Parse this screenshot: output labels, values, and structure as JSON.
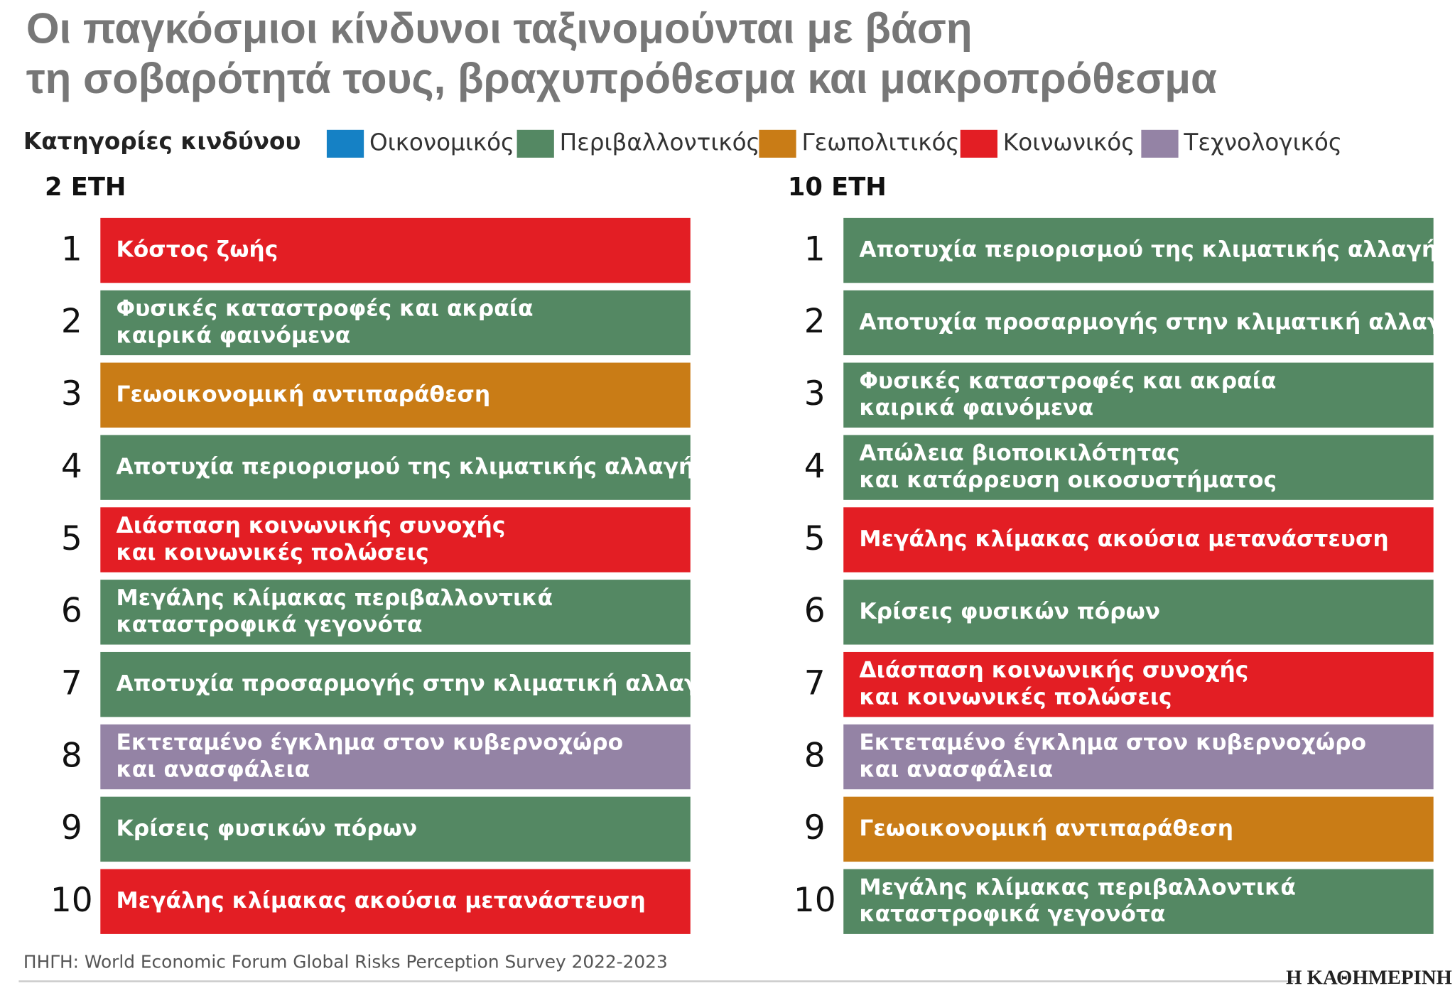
{
  "title": [
    "Οι παγκόσμιοι κίνδυνοι ταξινομούνται με βάση",
    "τη σοβαρότητά τους, βραχυπρόθεσμα και μακροπρόθεσμα"
  ],
  "legend": {
    "label": "Κατηγορίες κινδύνου",
    "items": [
      {
        "name": "Οικονομικός",
        "color": "#1581c5"
      },
      {
        "name": "Περιβαλλοντικός",
        "color": "#548863"
      },
      {
        "name": "Γεωπολιτικός",
        "color": "#c97c16"
      },
      {
        "name": "Κοινωνικός",
        "color": "#e31e24"
      },
      {
        "name": "Τεχνολογικός",
        "color": "#9483a5"
      }
    ]
  },
  "columns": [
    {
      "heading": "2 ΕΤΗ",
      "items": [
        {
          "rank": 1,
          "lines": [
            "Κόστος ζωής"
          ],
          "color": "#e31e24"
        },
        {
          "rank": 2,
          "lines": [
            "Φυσικές καταστροφές και ακραία",
            "καιρικά φαινόμενα"
          ],
          "color": "#548863"
        },
        {
          "rank": 3,
          "lines": [
            "Γεωοικονομική αντιπαράθεση"
          ],
          "color": "#c97c16"
        },
        {
          "rank": 4,
          "lines": [
            "Αποτυχία περιορισμού της κλιματικής αλλαγής"
          ],
          "color": "#548863"
        },
        {
          "rank": 5,
          "lines": [
            "Διάσπαση κοινωνικής συνοχής",
            "και κοινωνικές πολώσεις"
          ],
          "color": "#e31e24"
        },
        {
          "rank": 6,
          "lines": [
            "Μεγάλης κλίμακας περιβαλλοντικά",
            "καταστροφικά γεγονότα"
          ],
          "color": "#548863"
        },
        {
          "rank": 7,
          "lines": [
            "Αποτυχία προσαρμογής στην κλιματική αλλαγή"
          ],
          "color": "#548863"
        },
        {
          "rank": 8,
          "lines": [
            "Εκτεταμένο έγκλημα στον κυβερνοχώρο",
            "και ανασφάλεια"
          ],
          "color": "#9483a5"
        },
        {
          "rank": 9,
          "lines": [
            "Κρίσεις φυσικών πόρων"
          ],
          "color": "#548863"
        },
        {
          "rank": 10,
          "lines": [
            "Μεγάλης κλίμακας ακούσια μετανάστευση"
          ],
          "color": "#e31e24"
        }
      ]
    },
    {
      "heading": "10 ΕΤΗ",
      "items": [
        {
          "rank": 1,
          "lines": [
            "Αποτυχία περιορισμού της κλιματικής αλλαγής"
          ],
          "color": "#548863"
        },
        {
          "rank": 2,
          "lines": [
            "Αποτυχία προσαρμογής στην κλιματική αλλαγή"
          ],
          "color": "#548863"
        },
        {
          "rank": 3,
          "lines": [
            "Φυσικές καταστροφές και ακραία",
            "καιρικά φαινόμενα"
          ],
          "color": "#548863"
        },
        {
          "rank": 4,
          "lines": [
            "Απώλεια βιοποικιλότητας",
            "και κατάρρευση οικοσυστήματος"
          ],
          "color": "#548863"
        },
        {
          "rank": 5,
          "lines": [
            "Μεγάλης κλίμακας ακούσια μετανάστευση"
          ],
          "color": "#e31e24"
        },
        {
          "rank": 6,
          "lines": [
            "Κρίσεις φυσικών πόρων"
          ],
          "color": "#548863"
        },
        {
          "rank": 7,
          "lines": [
            "Διάσπαση κοινωνικής συνοχής",
            "και κοινωνικές πολώσεις"
          ],
          "color": "#e31e24"
        },
        {
          "rank": 8,
          "lines": [
            "Εκτεταμένο έγκλημα στον κυβερνοχώρο",
            "και ανασφάλεια"
          ],
          "color": "#9483a5"
        },
        {
          "rank": 9,
          "lines": [
            "Γεωοικονομική αντιπαράθεση"
          ],
          "color": "#c97c16"
        },
        {
          "rank": 10,
          "lines": [
            "Μεγάλης κλίμακας περιβαλλοντικά",
            "καταστροφικά γεγονότα"
          ],
          "color": "#548863"
        }
      ]
    }
  ],
  "source": "ΠΗΓΗ: World Economic Forum Global Risks Perception Survey 2022-2023",
  "logo": "Η ΚΑΘΗΜΕΡΙΝΗ"
}
